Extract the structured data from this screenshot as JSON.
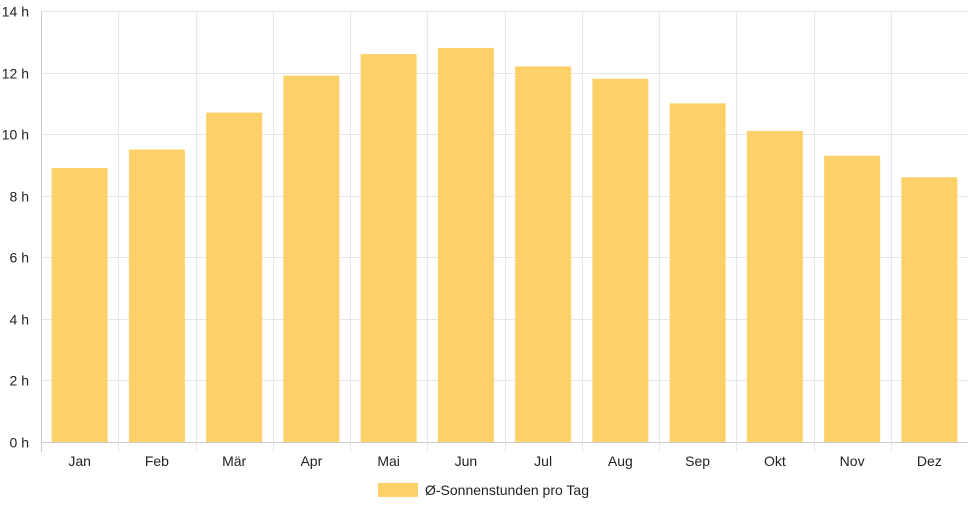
{
  "chart_data": {
    "type": "bar",
    "categories": [
      "Jan",
      "Feb",
      "Mär",
      "Apr",
      "Mai",
      "Jun",
      "Jul",
      "Aug",
      "Sep",
      "Okt",
      "Nov",
      "Dez"
    ],
    "series": [
      {
        "name": "Ø-Sonnenstunden pro Tag",
        "values": [
          8.9,
          9.5,
          10.7,
          11.9,
          12.6,
          12.8,
          12.2,
          11.8,
          11.0,
          10.1,
          9.3,
          8.6
        ]
      }
    ],
    "y_ticks": [
      "0 h",
      "2 h",
      "4 h",
      "6 h",
      "8 h",
      "10 h",
      "12 h",
      "14 h"
    ],
    "ylim": [
      0,
      14
    ],
    "y_step": 2,
    "grid": true,
    "legend_position": "bottom",
    "colors": {
      "bar": "#fdd069",
      "grid": "#e6e6e6",
      "axis": "#cccccc"
    }
  }
}
